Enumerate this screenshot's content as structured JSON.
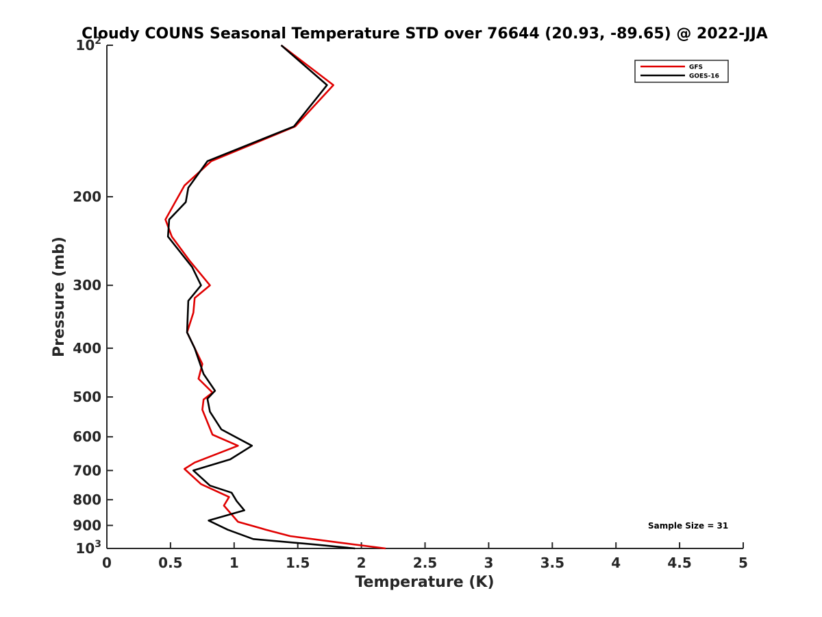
{
  "chart_data": {
    "type": "line",
    "title": "Cloudy COUNS Seasonal Temperature STD over 76644 (20.93, -89.65) @ 2022-JJA",
    "xlabel": "Temperature (K)",
    "ylabel": "Pressure (mb)",
    "xlim": [
      0,
      5
    ],
    "ylim": [
      100,
      1000
    ],
    "y_scale": "log",
    "y_reversed": true,
    "grid": false,
    "legend_position": "top-right",
    "x_ticks": [
      {
        "value": 0,
        "label": "0"
      },
      {
        "value": 0.5,
        "label": "0.5"
      },
      {
        "value": 1,
        "label": "1"
      },
      {
        "value": 1.5,
        "label": "1.5"
      },
      {
        "value": 2,
        "label": "2"
      },
      {
        "value": 2.5,
        "label": "2.5"
      },
      {
        "value": 3,
        "label": "3"
      },
      {
        "value": 3.5,
        "label": "3.5"
      },
      {
        "value": 4,
        "label": "4"
      },
      {
        "value": 4.5,
        "label": "4.5"
      },
      {
        "value": 5,
        "label": "5"
      }
    ],
    "y_ticks": [
      {
        "value": 100,
        "base": "10",
        "exp": "2"
      },
      {
        "value": 200,
        "label": "200"
      },
      {
        "value": 300,
        "label": "300"
      },
      {
        "value": 400,
        "label": "400"
      },
      {
        "value": 500,
        "label": "500"
      },
      {
        "value": 600,
        "label": "600"
      },
      {
        "value": 700,
        "label": "700"
      },
      {
        "value": 800,
        "label": "800"
      },
      {
        "value": 900,
        "label": "900"
      },
      {
        "value": 1000,
        "base": "10",
        "exp": "3"
      }
    ],
    "series": [
      {
        "name": "GFS",
        "color": "#e00000",
        "points": [
          [
            1.37,
            100
          ],
          [
            1.78,
            120
          ],
          [
            1.48,
            145
          ],
          [
            0.82,
            170
          ],
          [
            0.61,
            190
          ],
          [
            0.46,
            222
          ],
          [
            0.51,
            240
          ],
          [
            0.65,
            268
          ],
          [
            0.81,
            300
          ],
          [
            0.69,
            318
          ],
          [
            0.68,
            340
          ],
          [
            0.63,
            372
          ],
          [
            0.75,
            430
          ],
          [
            0.72,
            460
          ],
          [
            0.83,
            490
          ],
          [
            0.76,
            506
          ],
          [
            0.75,
            530
          ],
          [
            0.83,
            594
          ],
          [
            1.03,
            625
          ],
          [
            0.69,
            675
          ],
          [
            0.61,
            695
          ],
          [
            0.74,
            745
          ],
          [
            0.96,
            790
          ],
          [
            0.92,
            822
          ],
          [
            0.98,
            856
          ],
          [
            1.03,
            885
          ],
          [
            1.25,
            918
          ],
          [
            1.44,
            945
          ],
          [
            1.78,
            970
          ],
          [
            2.19,
            1000
          ]
        ]
      },
      {
        "name": "GOES-16",
        "color": "#000000",
        "points": [
          [
            1.37,
            100
          ],
          [
            1.73,
            120
          ],
          [
            1.47,
            145
          ],
          [
            0.79,
            170
          ],
          [
            0.64,
            192
          ],
          [
            0.62,
            205
          ],
          [
            0.49,
            222
          ],
          [
            0.48,
            240
          ],
          [
            0.67,
            276
          ],
          [
            0.74,
            300
          ],
          [
            0.64,
            322
          ],
          [
            0.63,
            372
          ],
          [
            0.69,
            400
          ],
          [
            0.76,
            450
          ],
          [
            0.85,
            486
          ],
          [
            0.79,
            504
          ],
          [
            0.81,
            535
          ],
          [
            0.9,
            580
          ],
          [
            1.14,
            625
          ],
          [
            0.97,
            665
          ],
          [
            0.68,
            700
          ],
          [
            0.81,
            750
          ],
          [
            0.98,
            775
          ],
          [
            1.02,
            805
          ],
          [
            1.08,
            840
          ],
          [
            0.8,
            880
          ],
          [
            0.95,
            918
          ],
          [
            1.15,
            958
          ],
          [
            1.63,
            982
          ],
          [
            1.95,
            1000
          ]
        ]
      }
    ],
    "annotation": "Sample Size = 31"
  }
}
